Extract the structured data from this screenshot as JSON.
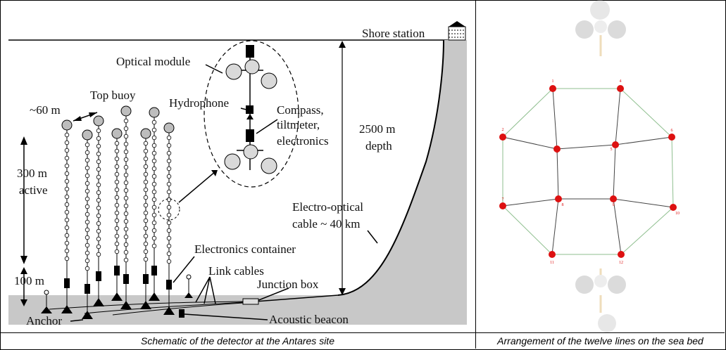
{
  "left_panel": {
    "labels": {
      "shore_station": "Shore station",
      "optical_module": "Optical module",
      "top_buoy": "Top buoy",
      "spacing": "~60 m",
      "hydrophone": "Hydrophone",
      "compass_1": "Compass,",
      "compass_2": "tiltmeter,",
      "compass_3": "electronics",
      "depth_1": "2500 m",
      "depth_2": "depth",
      "active_1": "300 m",
      "active_2": "active",
      "cable_1": "Electro-optical",
      "cable_2": "cable ~ 40 km",
      "electronics_container": "Electronics container",
      "link_cables": "Link cables",
      "junction_box": "Junction box",
      "bottom_100": "100 m",
      "anchor": "Anchor",
      "acoustic_beacon": "Acoustic beacon"
    },
    "caption": "Schematic of the detector at the Antares site"
  },
  "right_panel": {
    "caption": "Arrangement of the twelve lines on the sea bed",
    "line_numbers": [
      "1",
      "2",
      "3",
      "4",
      "5",
      "6",
      "7",
      "8",
      "9",
      "10",
      "11",
      "12"
    ]
  },
  "colors": {
    "node": "#dd1111",
    "edge_outer": "#8fbf8f",
    "edge_inner": "#444444",
    "seabed": "#c8c8c8"
  }
}
